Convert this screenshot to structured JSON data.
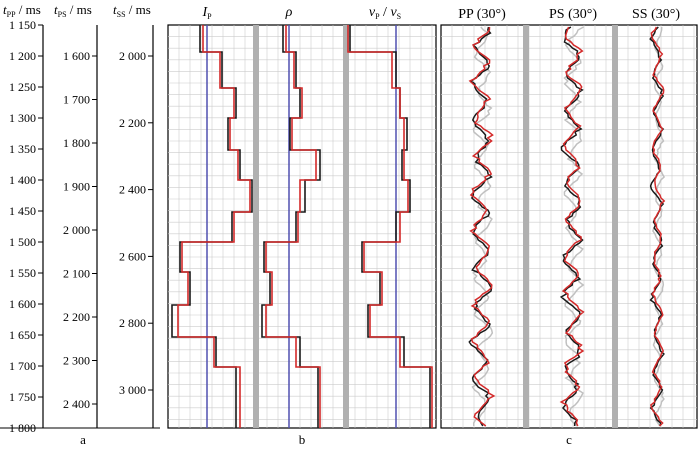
{
  "axes": [
    {
      "id": "tpp",
      "label_main": "t",
      "label_sub": "PP",
      "label_unit": " / ms",
      "ticks": [
        "1 150",
        "1 200",
        "1 250",
        "1 300",
        "1 350",
        "1 400",
        "1 450",
        "1 500",
        "1 550",
        "1 600",
        "1 650",
        "1 700",
        "1 750",
        "1 800"
      ]
    },
    {
      "id": "tps",
      "label_main": "t",
      "label_sub": "PS",
      "label_unit": " / ms",
      "ticks": [
        "1 600",
        "1 700",
        "1 800",
        "1 900",
        "2 000",
        "2 100",
        "2 200",
        "2 300",
        "2 400"
      ]
    },
    {
      "id": "tss",
      "label_main": "t",
      "label_sub": "SS",
      "label_unit": " / ms",
      "ticks": [
        "2 000",
        "2 200",
        "2 400",
        "2 600",
        "2 800",
        "3 000"
      ]
    }
  ],
  "panel_b": {
    "titles": [
      {
        "main": "I",
        "sub": "P"
      },
      {
        "main": "ρ",
        "sub": ""
      },
      {
        "main": "v",
        "sub": "P",
        "mid": " / ",
        "main2": "v",
        "sub2": "S"
      }
    ],
    "letter": "b"
  },
  "panel_c": {
    "titles": [
      "PP (30°)",
      "PS (30°)",
      "SS (30°)"
    ],
    "letter": "c"
  },
  "panel_a_letter": "a",
  "colors": {
    "model_line": "#5050b0",
    "true_curve": "#1a1a1a",
    "inverted_curve": "#d42a2a",
    "band": "#b0b0b0",
    "grid": "#cccccc"
  }
}
